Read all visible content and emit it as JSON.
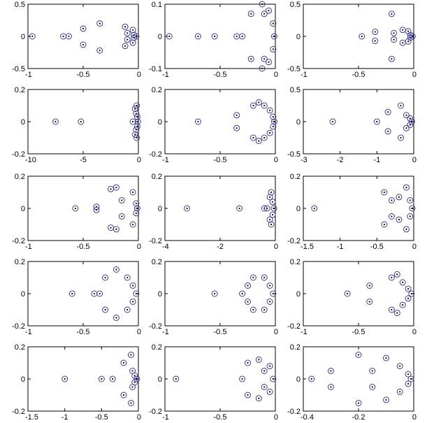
{
  "colors": {
    "marker_circle": "#3a3aa0",
    "marker_dot": "#000000",
    "axes": "#000000",
    "background": "#ffffff"
  },
  "chart_data": [
    {
      "type": "scatter",
      "xlim": [
        -1,
        0
      ],
      "ylim": [
        -0.5,
        0.5
      ],
      "xticks": [
        -1,
        -0.5,
        0
      ],
      "xtick_labels": [
        "-1",
        "-0.5",
        "0"
      ],
      "yticks": [
        -0.5,
        0,
        0.5
      ],
      "ytick_labels": [
        "-0.5",
        "0",
        "0.5"
      ],
      "points": [
        [
          -0.96,
          0
        ],
        [
          -0.68,
          0
        ],
        [
          -0.63,
          0
        ],
        [
          -0.5,
          0.12
        ],
        [
          -0.5,
          -0.13
        ],
        [
          -0.35,
          0.2
        ],
        [
          -0.35,
          -0.22
        ],
        [
          -0.12,
          0.15
        ],
        [
          -0.12,
          -0.15
        ],
        [
          -0.1,
          0.05
        ],
        [
          -0.1,
          -0.05
        ],
        [
          -0.05,
          0.1
        ],
        [
          -0.05,
          -0.1
        ],
        [
          -0.04,
          0.02
        ],
        [
          -0.04,
          -0.02
        ],
        [
          -0.02,
          0
        ]
      ]
    },
    {
      "type": "scatter",
      "xlim": [
        -1,
        0
      ],
      "ylim": [
        -0.1,
        0.1
      ],
      "xticks": [
        -1,
        -0.5,
        0
      ],
      "xtick_labels": [
        "-1",
        "-0.5",
        "0"
      ],
      "yticks": [
        -0.1,
        0,
        0.1
      ],
      "ytick_labels": [
        "-0.1",
        "0",
        "0.1"
      ],
      "points": [
        [
          -0.96,
          0
        ],
        [
          -0.7,
          0
        ],
        [
          -0.55,
          0
        ],
        [
          -0.35,
          0
        ],
        [
          -0.3,
          0
        ],
        [
          -0.22,
          0.07
        ],
        [
          -0.22,
          -0.07
        ],
        [
          -0.12,
          0.1
        ],
        [
          -0.12,
          -0.1
        ],
        [
          -0.1,
          0.07
        ],
        [
          -0.1,
          -0.07
        ],
        [
          -0.06,
          0.08
        ],
        [
          -0.06,
          -0.08
        ],
        [
          -0.02,
          0.04
        ],
        [
          -0.02,
          -0.04
        ],
        [
          -0.01,
          0
        ]
      ]
    },
    {
      "type": "scatter",
      "xlim": [
        -1,
        0
      ],
      "ylim": [
        -0.5,
        0.5
      ],
      "xticks": [
        -1,
        -0.5,
        0
      ],
      "xtick_labels": [
        "-1",
        "-0.5",
        "0"
      ],
      "yticks": [
        -0.5,
        0,
        0.5
      ],
      "ytick_labels": [
        "-0.5",
        "0",
        "0.5"
      ],
      "points": [
        [
          -0.47,
          0
        ],
        [
          -0.35,
          0.07
        ],
        [
          -0.35,
          -0.07
        ],
        [
          -0.2,
          0.35
        ],
        [
          -0.2,
          -0.35
        ],
        [
          -0.18,
          0.05
        ],
        [
          -0.18,
          -0.05
        ],
        [
          -0.1,
          0.1
        ],
        [
          -0.1,
          -0.1
        ],
        [
          -0.05,
          0.08
        ],
        [
          -0.05,
          -0.08
        ],
        [
          -0.03,
          0.02
        ],
        [
          -0.03,
          -0.02
        ],
        [
          -0.01,
          0
        ]
      ]
    },
    {
      "type": "scatter",
      "xlim": [
        -10,
        0
      ],
      "ylim": [
        -0.2,
        0.2
      ],
      "xticks": [
        -10,
        -5,
        0
      ],
      "xtick_labels": [
        "-10",
        "-5",
        "0"
      ],
      "yticks": [
        -0.2,
        0,
        0.2
      ],
      "ytick_labels": [
        "-0.2",
        "0",
        "0.2"
      ],
      "points": [
        [
          -7.5,
          0
        ],
        [
          -5.2,
          0
        ],
        [
          -0.5,
          0
        ],
        [
          -0.3,
          0.08
        ],
        [
          -0.3,
          -0.08
        ],
        [
          -0.2,
          0.05
        ],
        [
          -0.2,
          -0.05
        ],
        [
          -0.15,
          0.1
        ],
        [
          -0.15,
          -0.1
        ],
        [
          -0.1,
          0.03
        ],
        [
          -0.1,
          -0.03
        ],
        [
          -0.05,
          0
        ]
      ]
    },
    {
      "type": "scatter",
      "xlim": [
        -1,
        0
      ],
      "ylim": [
        -0.2,
        0.2
      ],
      "xticks": [
        -1,
        -0.5,
        0
      ],
      "xtick_labels": [
        "-1",
        "-0.5",
        "0"
      ],
      "yticks": [
        -0.2,
        0,
        0.2
      ],
      "ytick_labels": [
        "-0.2",
        "0",
        "0.2"
      ],
      "points": [
        [
          -0.7,
          0
        ],
        [
          -0.35,
          0.04
        ],
        [
          -0.35,
          -0.04
        ],
        [
          -0.2,
          0.1
        ],
        [
          -0.2,
          -0.1
        ],
        [
          -0.15,
          0.12
        ],
        [
          -0.15,
          -0.12
        ],
        [
          -0.1,
          0.1
        ],
        [
          -0.1,
          -0.1
        ],
        [
          -0.05,
          0.07
        ],
        [
          -0.05,
          -0.07
        ],
        [
          -0.02,
          0.03
        ],
        [
          -0.02,
          -0.03
        ],
        [
          -0.01,
          0
        ]
      ]
    },
    {
      "type": "scatter",
      "xlim": [
        -3,
        0
      ],
      "ylim": [
        -0.5,
        0.5
      ],
      "xticks": [
        -3,
        -2,
        -1,
        0
      ],
      "xtick_labels": [
        "-3",
        "-2",
        "-1",
        "0"
      ],
      "yticks": [
        -0.5,
        0,
        0.5
      ],
      "ytick_labels": [
        "-0.5",
        "0",
        "0.5"
      ],
      "points": [
        [
          -2.2,
          0
        ],
        [
          -1.0,
          0
        ],
        [
          -0.7,
          0.15
        ],
        [
          -0.7,
          -0.15
        ],
        [
          -0.35,
          0.25
        ],
        [
          -0.35,
          -0.25
        ],
        [
          -0.2,
          0.1
        ],
        [
          -0.2,
          -0.1
        ],
        [
          -0.1,
          0.05
        ],
        [
          -0.1,
          -0.05
        ],
        [
          -0.05,
          0
        ]
      ]
    },
    {
      "type": "scatter",
      "xlim": [
        -1,
        0
      ],
      "ylim": [
        -0.2,
        0.2
      ],
      "xticks": [
        -1,
        -0.5,
        0
      ],
      "xtick_labels": [
        "-1",
        "-0.5",
        "0"
      ],
      "yticks": [
        -0.2,
        0,
        0.2
      ],
      "ytick_labels": [
        "-0.2",
        "0",
        "0.2"
      ],
      "points": [
        [
          -0.57,
          0
        ],
        [
          -0.38,
          0.01
        ],
        [
          -0.38,
          -0.01
        ],
        [
          -0.25,
          0.12
        ],
        [
          -0.25,
          -0.12
        ],
        [
          -0.2,
          0.13
        ],
        [
          -0.2,
          -0.13
        ],
        [
          -0.15,
          0.05
        ],
        [
          -0.15,
          -0.05
        ],
        [
          -0.05,
          0.1
        ],
        [
          -0.05,
          -0.1
        ],
        [
          -0.02,
          0.03
        ],
        [
          -0.02,
          -0.03
        ],
        [
          -0.01,
          0
        ]
      ]
    },
    {
      "type": "scatter",
      "xlim": [
        -4,
        0
      ],
      "ylim": [
        -0.2,
        0.2
      ],
      "xticks": [
        -4,
        -2,
        0
      ],
      "xtick_labels": [
        "-4",
        "-2",
        "0"
      ],
      "yticks": [
        -0.2,
        0,
        0.2
      ],
      "ytick_labels": [
        "-0.2",
        "0",
        "0.2"
      ],
      "points": [
        [
          -3.2,
          0
        ],
        [
          -1.3,
          0
        ],
        [
          -0.4,
          0
        ],
        [
          -0.3,
          0
        ],
        [
          -0.2,
          0.07
        ],
        [
          -0.2,
          -0.07
        ],
        [
          -0.15,
          0.1
        ],
        [
          -0.15,
          -0.1
        ],
        [
          -0.1,
          0.04
        ],
        [
          -0.1,
          -0.04
        ],
        [
          -0.05,
          0
        ]
      ]
    },
    {
      "type": "scatter",
      "xlim": [
        -1.5,
        0
      ],
      "ylim": [
        -0.2,
        0.2
      ],
      "xticks": [
        -1.5,
        -1,
        -0.5,
        0
      ],
      "xtick_labels": [
        "-1.5",
        "-1",
        "-0.5",
        "0"
      ],
      "yticks": [
        -0.2,
        0,
        0.2
      ],
      "ytick_labels": [
        "-0.2",
        "0",
        "0.2"
      ],
      "points": [
        [
          -1.35,
          0
        ],
        [
          -0.4,
          0.1
        ],
        [
          -0.4,
          -0.1
        ],
        [
          -0.3,
          0.05
        ],
        [
          -0.3,
          -0.05
        ],
        [
          -0.2,
          0.07
        ],
        [
          -0.2,
          -0.07
        ],
        [
          -0.1,
          0.13
        ],
        [
          -0.1,
          -0.13
        ],
        [
          -0.05,
          0.05
        ],
        [
          -0.05,
          -0.05
        ],
        [
          -0.02,
          0
        ]
      ]
    },
    {
      "type": "scatter",
      "xlim": [
        -1,
        0
      ],
      "ylim": [
        -0.2,
        0.2
      ],
      "xticks": [
        -1,
        -0.5,
        0
      ],
      "xtick_labels": [
        "-1",
        "-0.5",
        "0"
      ],
      "yticks": [
        -0.2,
        0,
        0.2
      ],
      "ytick_labels": [
        "-0.2",
        "0",
        "0.2"
      ],
      "points": [
        [
          -0.6,
          0
        ],
        [
          -0.4,
          0
        ],
        [
          -0.35,
          0
        ],
        [
          -0.3,
          0.1
        ],
        [
          -0.3,
          -0.1
        ],
        [
          -0.2,
          0.15
        ],
        [
          -0.2,
          -0.15
        ],
        [
          -0.1,
          0.1
        ],
        [
          -0.1,
          -0.1
        ],
        [
          -0.05,
          0.05
        ],
        [
          -0.05,
          -0.05
        ],
        [
          -0.02,
          0
        ]
      ]
    },
    {
      "type": "scatter",
      "xlim": [
        -1,
        0
      ],
      "ylim": [
        -0.2,
        0.2
      ],
      "xticks": [
        -1,
        -0.5,
        0
      ],
      "xtick_labels": [
        "-1",
        "-0.5",
        "0"
      ],
      "yticks": [
        -0.2,
        0,
        0.2
      ],
      "ytick_labels": [
        "-0.2",
        "0",
        "0.2"
      ],
      "points": [
        [
          -0.55,
          0
        ],
        [
          -0.3,
          0
        ],
        [
          -0.25,
          0.05
        ],
        [
          -0.25,
          -0.05
        ],
        [
          -0.2,
          0.1
        ],
        [
          -0.2,
          -0.1
        ],
        [
          -0.1,
          0.1
        ],
        [
          -0.1,
          -0.1
        ],
        [
          -0.05,
          0.05
        ],
        [
          -0.05,
          -0.05
        ],
        [
          -0.02,
          0
        ]
      ]
    },
    {
      "type": "scatter",
      "xlim": [
        -1,
        0
      ],
      "ylim": [
        -0.2,
        0.2
      ],
      "xticks": [
        -1,
        -0.5,
        0
      ],
      "xtick_labels": [
        "-1",
        "-0.5",
        "0"
      ],
      "yticks": [
        -0.2,
        0,
        0.2
      ],
      "ytick_labels": [
        "-0.2",
        "0",
        "0.2"
      ],
      "points": [
        [
          -0.6,
          0
        ],
        [
          -0.4,
          0.05
        ],
        [
          -0.4,
          -0.05
        ],
        [
          -0.2,
          0.1
        ],
        [
          -0.2,
          -0.1
        ],
        [
          -0.15,
          0.12
        ],
        [
          -0.15,
          -0.12
        ],
        [
          -0.1,
          0.07
        ],
        [
          -0.1,
          -0.07
        ],
        [
          -0.05,
          0.03
        ],
        [
          -0.05,
          -0.03
        ],
        [
          -0.02,
          0
        ]
      ]
    },
    {
      "type": "scatter",
      "xlim": [
        -1.5,
        0
      ],
      "ylim": [
        -0.2,
        0.2
      ],
      "xticks": [
        -1.5,
        -1,
        -0.5,
        0
      ],
      "xtick_labels": [
        "-1.5",
        "-1",
        "-0.5",
        "0"
      ],
      "yticks": [
        -0.2,
        0,
        0.2
      ],
      "ytick_labels": [
        "-0.2",
        "0",
        "0.2"
      ],
      "points": [
        [
          -1.0,
          0
        ],
        [
          -0.5,
          0
        ],
        [
          -0.35,
          0
        ],
        [
          -0.2,
          0.1
        ],
        [
          -0.2,
          -0.1
        ],
        [
          -0.1,
          0.15
        ],
        [
          -0.1,
          -0.15
        ],
        [
          -0.08,
          0.05
        ],
        [
          -0.08,
          -0.05
        ],
        [
          -0.05,
          0.02
        ],
        [
          -0.05,
          -0.02
        ],
        [
          -0.02,
          0
        ]
      ]
    },
    {
      "type": "scatter",
      "xlim": [
        -1,
        0
      ],
      "ylim": [
        -0.2,
        0.2
      ],
      "xticks": [
        -1,
        -0.5,
        0
      ],
      "xtick_labels": [
        "-1",
        "-0.5",
        "0"
      ],
      "yticks": [
        -0.2,
        0,
        0.2
      ],
      "ytick_labels": [
        "-0.2",
        "0",
        "0.2"
      ],
      "points": [
        [
          -0.9,
          0
        ],
        [
          -0.3,
          0
        ],
        [
          -0.25,
          0.1
        ],
        [
          -0.25,
          -0.1
        ],
        [
          -0.15,
          0.12
        ],
        [
          -0.15,
          -0.12
        ],
        [
          -0.1,
          0.05
        ],
        [
          -0.1,
          -0.05
        ],
        [
          -0.05,
          0.08
        ],
        [
          -0.05,
          -0.08
        ],
        [
          -0.02,
          0
        ]
      ]
    },
    {
      "type": "scatter",
      "xlim": [
        -0.4,
        0
      ],
      "ylim": [
        -0.2,
        0.2
      ],
      "xticks": [
        -0.4,
        -0.2,
        0
      ],
      "xtick_labels": [
        "-0.4",
        "-0.2",
        "0"
      ],
      "yticks": [
        -0.2,
        0,
        0.2
      ],
      "ytick_labels": [
        "-0.2",
        "0",
        "0.2"
      ],
      "points": [
        [
          -0.37,
          0
        ],
        [
          -0.3,
          0.05
        ],
        [
          -0.3,
          -0.05
        ],
        [
          -0.2,
          0.15
        ],
        [
          -0.2,
          -0.15
        ],
        [
          -0.15,
          0.05
        ],
        [
          -0.15,
          -0.05
        ],
        [
          -0.1,
          0.13
        ],
        [
          -0.1,
          -0.13
        ],
        [
          -0.05,
          0.08
        ],
        [
          -0.05,
          -0.08
        ],
        [
          -0.02,
          0.03
        ],
        [
          -0.02,
          -0.03
        ],
        [
          -0.01,
          0
        ]
      ]
    }
  ]
}
